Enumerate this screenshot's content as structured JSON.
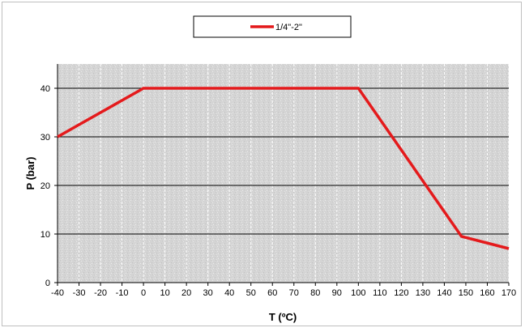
{
  "chart_data": {
    "type": "line",
    "title": "",
    "xlabel": "T (ºC)",
    "ylabel": "P (bar)",
    "xlim": [
      -40,
      170
    ],
    "ylim": [
      0,
      45
    ],
    "xticks": [
      -40,
      -30,
      -20,
      -10,
      0,
      10,
      20,
      30,
      40,
      50,
      60,
      70,
      80,
      90,
      100,
      110,
      120,
      130,
      140,
      150,
      160,
      170
    ],
    "yticks": [
      0,
      10,
      20,
      30,
      40
    ],
    "grid": "horizontal at y ticks, vertical dashed at x ticks",
    "legend_position": "top-center",
    "series": [
      {
        "name": "1/4\"-2\"",
        "color": "#e41a1c",
        "x": [
          -40,
          0,
          100,
          148,
          170
        ],
        "y": [
          30,
          40,
          40,
          9.5,
          7
        ]
      }
    ]
  },
  "colors": {
    "plot_background": "#d6d6d6",
    "grid_major": "#000000",
    "grid_minor": "#ffffff"
  }
}
